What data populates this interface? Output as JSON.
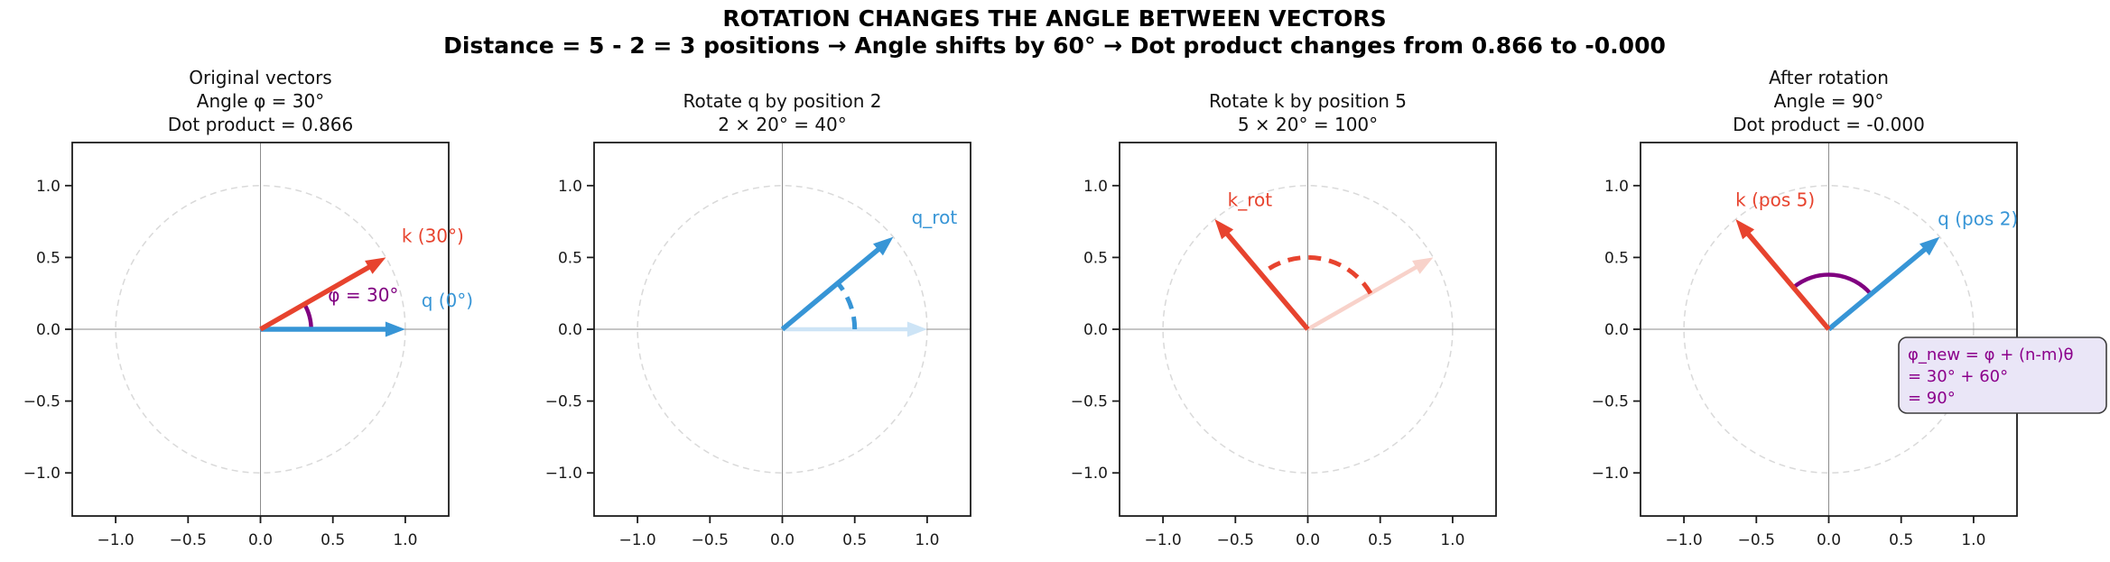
{
  "suptitle": {
    "line1": "ROTATION CHANGES THE ANGLE BETWEEN VECTORS",
    "line2": "Distance = 5 - 2 = 3 positions → Angle shifts by 60° → Dot product changes from 0.866 to -0.000"
  },
  "colors": {
    "red": "#e7432e",
    "blue": "#3795d6",
    "faded_red": "#f8d2ca",
    "faded_blue": "#cde4f6",
    "purple": "#800080",
    "annotation_text": "#8b008b",
    "annotation_bg": "#eae6f7",
    "annotation_border": "#3d3d3d",
    "circle": "#d9d9d9",
    "centerline": "#8c8c8c",
    "spine": "#1c1c1c",
    "text": "#111111"
  },
  "axis": {
    "lim": 1.3,
    "tick_values": [
      -1.0,
      -0.5,
      0.0,
      0.5,
      1.0
    ],
    "x_tick_labels": [
      "−1.0",
      "−0.5",
      "0.0",
      "0.5",
      "1.0"
    ],
    "y_tick_labels": [
      "−1.0",
      "−0.5",
      "0.0",
      "0.5",
      "1.0"
    ],
    "unit_circle": true,
    "grid": false
  },
  "chart_data": {
    "type": "vector-plot",
    "title": "ROTATION CHANGES THE ANGLE BETWEEN VECTORS",
    "subtitle": "Distance = 5 - 2 = 3 positions → Angle shifts by 60° → Dot product changes from 0.866 to -0.000",
    "xlim": [
      -1.3,
      1.3
    ],
    "ylim": [
      -1.3,
      1.3
    ],
    "subplots": [
      {
        "title_lines": [
          "Original vectors",
          "Angle φ = 30°",
          "Dot product = 0.866"
        ],
        "vectors": [
          {
            "name": "q",
            "angle_deg": 0,
            "length": 1.0,
            "color_key": "blue",
            "faded": false
          },
          {
            "name": "k",
            "angle_deg": 30,
            "length": 1.0,
            "color_key": "red",
            "faded": false
          }
        ],
        "arcs": [
          {
            "from_deg": 0,
            "to_deg": 30,
            "radius": 0.35,
            "dashed": false,
            "color_key": "purple"
          }
        ],
        "labels": [
          {
            "text": "k (30°)",
            "x": 1.19,
            "y": 0.65,
            "color_key": "red"
          },
          {
            "text": "q (0°)",
            "x": 1.29,
            "y": 0.2,
            "color_key": "blue"
          },
          {
            "text": "φ = 30°",
            "x": 0.71,
            "y": 0.24,
            "color_key": "purple"
          }
        ]
      },
      {
        "title_lines": [
          "Rotate q by position 2",
          "2 × 20° = 40°"
        ],
        "vectors": [
          {
            "name": "q-original-faded",
            "angle_deg": 0,
            "length": 1.0,
            "color_key": "faded_blue",
            "faded": true
          },
          {
            "name": "q_rot",
            "angle_deg": 40,
            "length": 1.0,
            "color_key": "blue",
            "faded": false
          }
        ],
        "arcs": [
          {
            "from_deg": 0,
            "to_deg": 40,
            "radius": 0.5,
            "dashed": true,
            "color_key": "blue"
          }
        ],
        "labels": [
          {
            "text": "q_rot",
            "x": 1.05,
            "y": 0.78,
            "color_key": "blue"
          }
        ]
      },
      {
        "title_lines": [
          "Rotate k by position 5",
          "5 × 20° = 100°"
        ],
        "vectors": [
          {
            "name": "k-original-faded",
            "angle_deg": 30,
            "length": 1.0,
            "color_key": "faded_red",
            "faded": true
          },
          {
            "name": "k_rot",
            "angle_deg": 130,
            "length": 1.0,
            "color_key": "red",
            "faded": false
          }
        ],
        "arcs": [
          {
            "from_deg": 30,
            "to_deg": 130,
            "radius": 0.5,
            "dashed": true,
            "color_key": "red"
          }
        ],
        "labels": [
          {
            "text": "k_rot",
            "x": -0.4,
            "y": 0.9,
            "color_key": "red"
          }
        ]
      },
      {
        "title_lines": [
          "After rotation",
          "Angle = 90°",
          "Dot product = -0.000"
        ],
        "vectors": [
          {
            "name": "q-pos-2",
            "angle_deg": 40,
            "length": 1.0,
            "color_key": "blue",
            "faded": false
          },
          {
            "name": "k-pos-5",
            "angle_deg": 130,
            "length": 1.0,
            "color_key": "red",
            "faded": false
          }
        ],
        "arcs": [
          {
            "from_deg": 40,
            "to_deg": 130,
            "radius": 0.38,
            "dashed": false,
            "color_key": "purple"
          }
        ],
        "labels": [
          {
            "text": "k (pos 5)",
            "x": -0.37,
            "y": 0.9,
            "color_key": "red"
          },
          {
            "text": "q (pos 2)",
            "x": 1.03,
            "y": 0.77,
            "color_key": "blue"
          }
        ],
        "annotation": {
          "lines": [
            "φ_new = φ + (n-m)θ",
            "= 30° + 60°",
            "= 90°"
          ]
        }
      }
    ]
  }
}
